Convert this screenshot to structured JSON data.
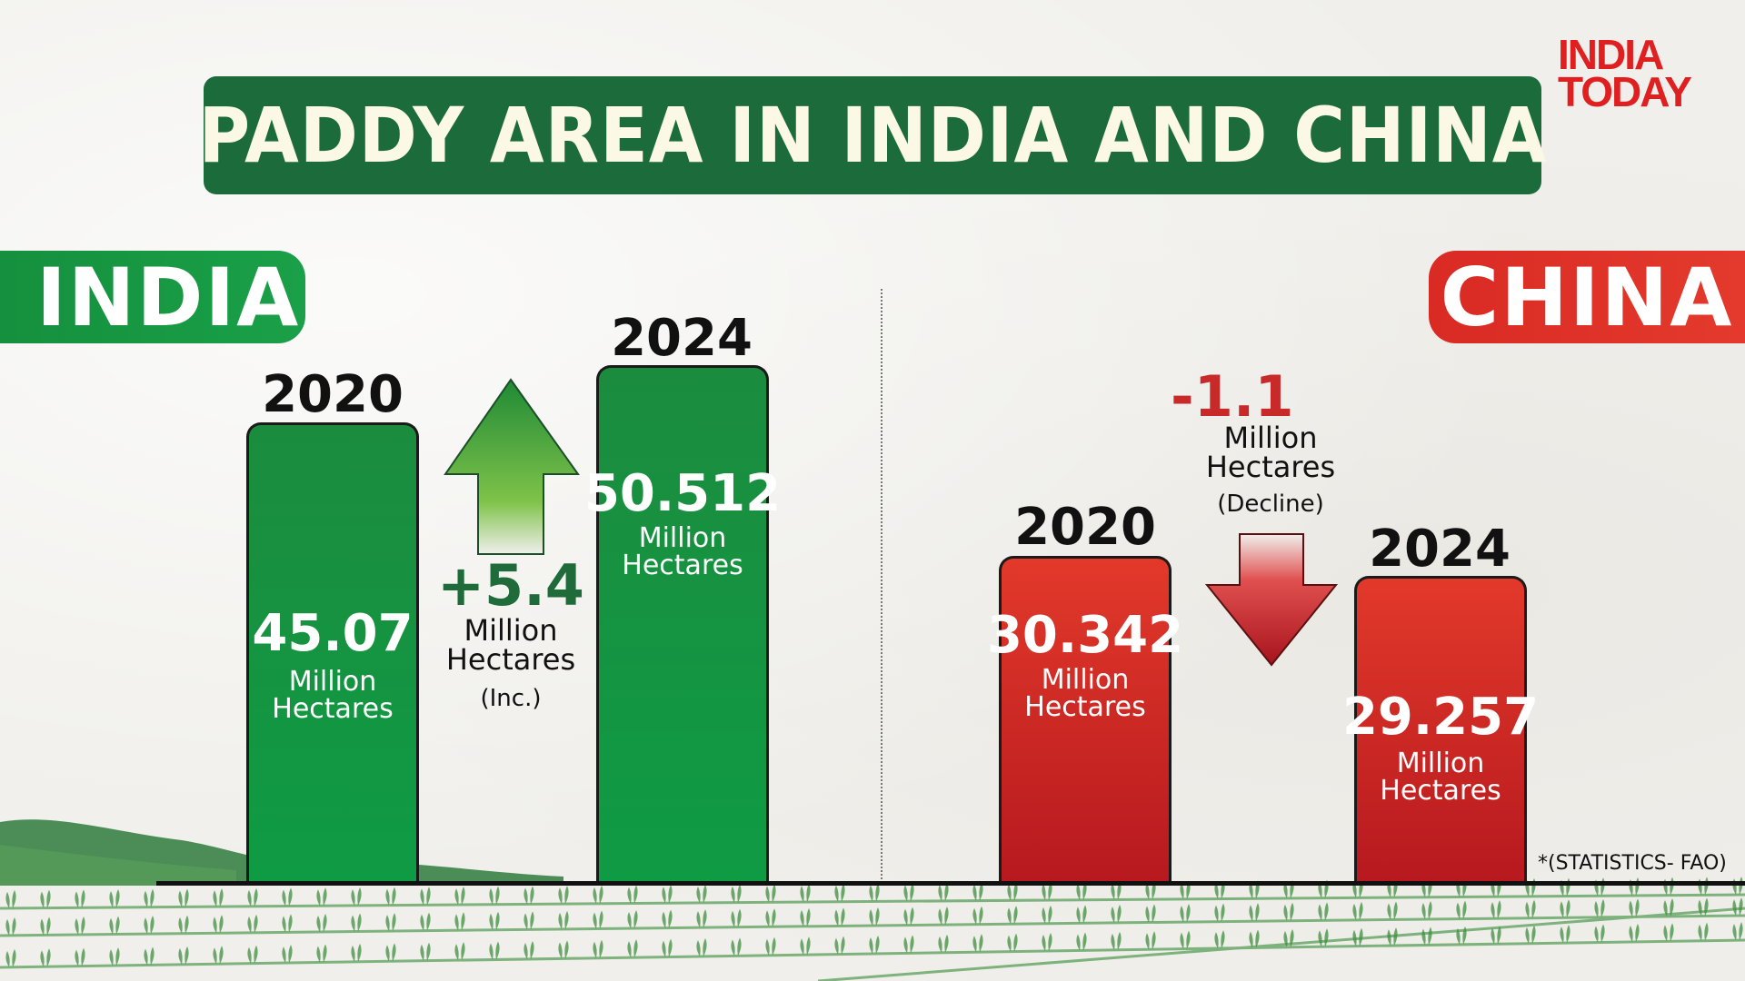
{
  "title": "PADDY AREA IN INDIA AND CHINA",
  "logo": {
    "line1": "INDIA",
    "line2": "TODAY"
  },
  "india": {
    "label": "INDIA",
    "bars": [
      {
        "year": "2020",
        "value_label": "45.07",
        "unit1": "Million",
        "unit2": "Hectares"
      },
      {
        "year": "2024",
        "value_label": "50.512",
        "unit1": "Million",
        "unit2": "Hectares"
      }
    ],
    "change": {
      "value": "+5.4",
      "unit1": "Million",
      "unit2": "Hectares",
      "note": "(Inc.)"
    }
  },
  "china": {
    "label": "CHINA",
    "bars": [
      {
        "year": "2020",
        "value_label": "30.342",
        "unit1": "Million",
        "unit2": "Hectares"
      },
      {
        "year": "2024",
        "value_label": "29.257",
        "unit1": "Million",
        "unit2": "Hectares"
      }
    ],
    "change": {
      "value": "-1.1",
      "unit1": "Million",
      "unit2": "Hectares",
      "note": "(Decline)"
    }
  },
  "source": "*(STATISTICS- FAO)",
  "colors": {
    "india_green": "#1a9a44",
    "china_red": "#d92a23",
    "title_bg": "#1c6b3a",
    "logo_red": "#e02020"
  },
  "chart_data": {
    "type": "bar",
    "title": "PADDY AREA IN INDIA AND CHINA",
    "series": [
      {
        "name": "INDIA",
        "categories": [
          "2020",
          "2024"
        ],
        "values": [
          45.07,
          50.512
        ],
        "change": 5.4
      },
      {
        "name": "CHINA",
        "categories": [
          "2020",
          "2024"
        ],
        "values": [
          30.342,
          29.257
        ],
        "change": -1.1
      }
    ],
    "unit": "Million Hectares",
    "grid": false
  }
}
